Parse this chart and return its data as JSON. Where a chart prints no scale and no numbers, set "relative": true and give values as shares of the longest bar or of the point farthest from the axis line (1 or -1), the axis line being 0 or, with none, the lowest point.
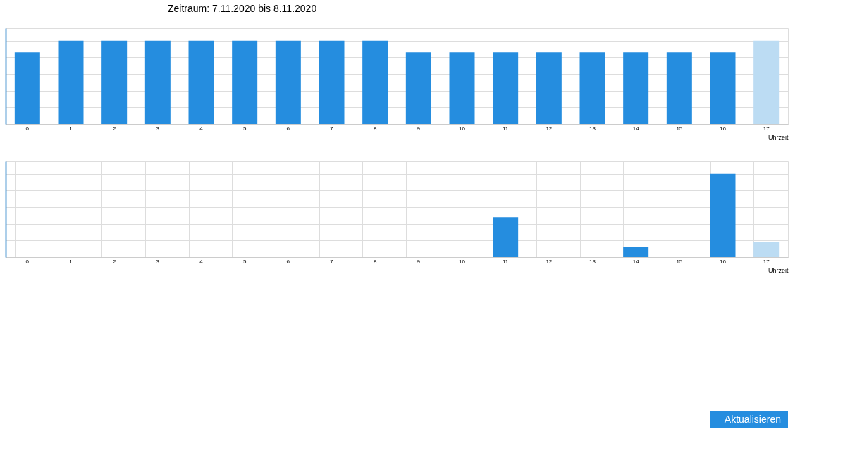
{
  "chart_data": [
    {
      "type": "bar",
      "title": "Zeitraum: 7.11.2020 bis 8.11.2020",
      "xlabel": "Uhrzeit",
      "relative": true,
      "grid": "y",
      "categories": [
        "0",
        "1",
        "2",
        "3",
        "4",
        "5",
        "6",
        "7",
        "8",
        "9",
        "10",
        "11",
        "12",
        "13",
        "14",
        "15",
        "16",
        "17"
      ],
      "values": [
        0.86,
        1,
        1,
        1,
        1,
        1,
        1,
        1,
        1,
        0.86,
        0.86,
        0.86,
        0.86,
        0.86,
        0.86,
        0.86,
        0.86,
        1
      ],
      "colors": [
        "#258ddf",
        "#258ddf",
        "#258ddf",
        "#258ddf",
        "#258ddf",
        "#258ddf",
        "#258ddf",
        "#258ddf",
        "#258ddf",
        "#258ddf",
        "#258ddf",
        "#258ddf",
        "#258ddf",
        "#258ddf",
        "#258ddf",
        "#258ddf",
        "#258ddf",
        "#bcdcf3"
      ]
    },
    {
      "type": "bar",
      "xlabel": "Uhrzeit",
      "relative": true,
      "grid": true,
      "categories": [
        "0",
        "1",
        "2",
        "3",
        "4",
        "5",
        "6",
        "7",
        "8",
        "9",
        "10",
        "11",
        "12",
        "13",
        "14",
        "15",
        "16",
        "17"
      ],
      "values": [
        null,
        null,
        null,
        null,
        null,
        null,
        null,
        null,
        null,
        null,
        null,
        0.48,
        null,
        null,
        0.12,
        null,
        1,
        0.18
      ],
      "colors": [
        "#258ddf",
        "#258ddf",
        "#258ddf",
        "#258ddf",
        "#258ddf",
        "#258ddf",
        "#258ddf",
        "#258ddf",
        "#258ddf",
        "#258ddf",
        "#258ddf",
        "#258ddf",
        "#258ddf",
        "#258ddf",
        "#258ddf",
        "#258ddf",
        "#258ddf",
        "#bcdcf3"
      ]
    },
    {
      "type": "other",
      "annotations": [
        "Aktualisieren"
      ]
    }
  ]
}
